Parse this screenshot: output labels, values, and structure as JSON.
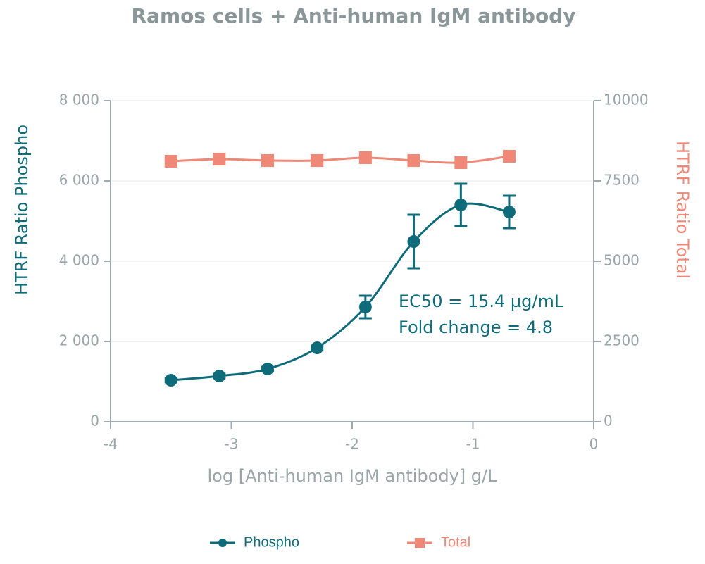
{
  "chart_data": {
    "type": "scatter",
    "title": "Ramos cells + Anti-human IgM antibody",
    "x_label": "log [Anti-human IgM antibody] g/L",
    "y_label": "HTRF Ratio Phospho",
    "y2_label": "HTRF Ratio Total",
    "annotations": [
      "EC50 = 15.4 µg/mL",
      "Fold change = 4.8"
    ],
    "x": [
      -3.5,
      -3.1,
      -2.7,
      -2.29,
      -1.89,
      -1.49,
      -1.1,
      -0.7
    ],
    "series": [
      {
        "name": "Phospho",
        "color": "#0e6b7a",
        "marker": "circle",
        "values": [
          1035,
          1140,
          1316,
          1842,
          2860,
          4491,
          5404,
          5228
        ],
        "errors": [
          50,
          50,
          50,
          50,
          280,
          667,
          526,
          404
        ]
      },
      {
        "name": "Total",
        "color": "#f08878",
        "marker": "square",
        "axis": "y2",
        "values": [
          8114,
          8180,
          8136,
          8136,
          8224,
          8136,
          8070,
          8268
        ]
      }
    ],
    "xlim": [
      -4,
      0
    ],
    "xticks": [
      -4,
      -3,
      -2,
      -1,
      0
    ],
    "ylim": [
      0,
      8000
    ],
    "yticks": [
      0,
      {
        "value": 2000,
        "label": "2 000"
      },
      {
        "value": 4000,
        "label": "4 000"
      },
      {
        "value": 6000,
        "label": "6 000"
      },
      {
        "value": 8000,
        "label": "8 000"
      }
    ],
    "y2lim": [
      0,
      10000
    ],
    "y2ticks": [
      0,
      2500,
      5000,
      7500,
      10000
    ],
    "grid": true,
    "legend": "bottom"
  }
}
